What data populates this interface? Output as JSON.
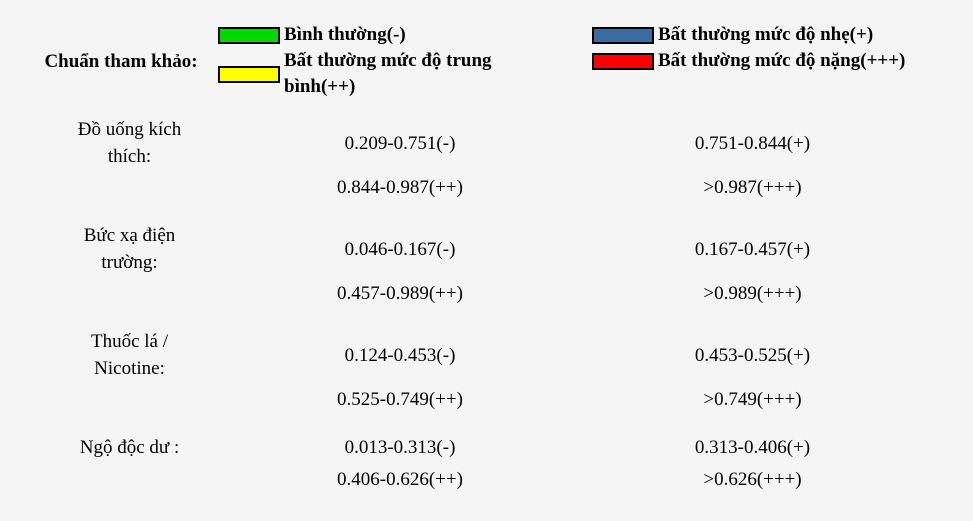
{
  "colors": {
    "background": "#f5f5f5",
    "text": "#000000",
    "swatch_border": "#000000",
    "normal_green": "#00d800",
    "mild_blue": "#3a6ca3",
    "moderate_yellow": "#ffff00",
    "severe_red": "#fb0000"
  },
  "legend": {
    "title": "Chuẩn tham khảo:",
    "items": [
      {
        "key": "normal",
        "label": "Bình thường(-)",
        "color": "#00d800"
      },
      {
        "key": "mild",
        "label": "Bất thường mức độ nhẹ(+)",
        "color": "#3a6ca3"
      },
      {
        "key": "moderate",
        "label": "Bất thường mức độ trung bình(++)",
        "color": "#ffff00"
      },
      {
        "key": "severe",
        "label": "Bất thường mức độ nặng(+++)",
        "color": "#fb0000"
      }
    ]
  },
  "rows": [
    {
      "label": "Đồ uống kích thích:",
      "normal": "0.209-0.751(-)",
      "mild": "0.751-0.844(+)",
      "moderate": "0.844-0.987(++)",
      "severe": ">0.987(+++)"
    },
    {
      "label": "Bức xạ điện trường:",
      "normal": "0.046-0.167(-)",
      "mild": "0.167-0.457(+)",
      "moderate": "0.457-0.989(++)",
      "severe": ">0.989(+++)"
    },
    {
      "label": "Thuốc lá / Nicotine:",
      "normal": "0.124-0.453(-)",
      "mild": "0.453-0.525(+)",
      "moderate": "0.525-0.749(++)",
      "severe": ">0.749(+++)"
    },
    {
      "label": "Ngộ độc dư :",
      "normal": "0.013-0.313(-)",
      "mild": "0.313-0.406(+)",
      "moderate": "0.406-0.626(++)",
      "severe": ">0.626(+++)"
    }
  ]
}
